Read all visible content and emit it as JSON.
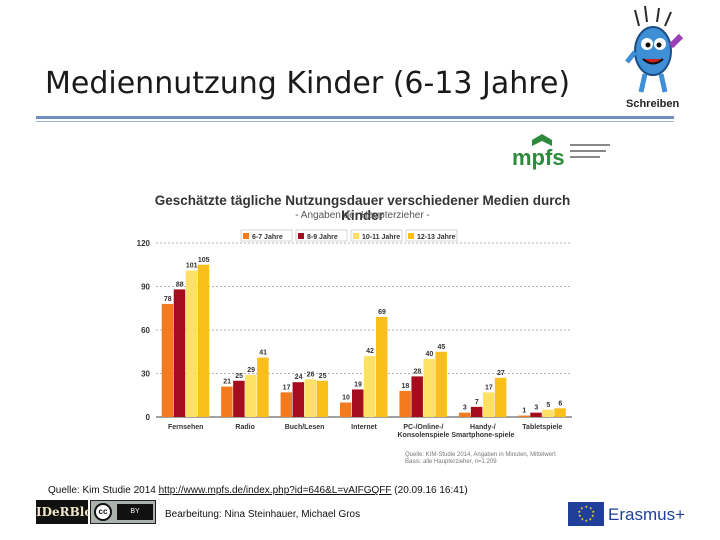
{
  "slide": {
    "title": "Mediennutzung Kinder (6-13 Jahre)",
    "mascot_label": "Schreiben",
    "publisher_logo_text": "mpfs",
    "source_line_prefix": "Quelle: Kim Studie 2014 ",
    "source_link": "http://www.mpfs.de/index.php?id=646&L=vAIFGQFF",
    "source_line_suffix": " (20.09.16 16:41)",
    "credit": "Bearbeitung: Nina Steinhauer, Michael Gros",
    "blog_logo": "IDeRBlog",
    "cc_label": "cc",
    "cc_by": "BY",
    "erasmus_label": "Erasmus+"
  },
  "chart_data": {
    "type": "bar",
    "title": "Geschätzte tägliche Nutzungsdauer verschiedener Medien durch Kinder",
    "subtitle": "- Angaben der Haupterzieher -",
    "categories": [
      "Fernsehen",
      "Radio",
      "Buch/Lesen",
      "Internet",
      "PC-/Online-/ Konsolenspiele",
      "Handy-/ Smartphone-spiele",
      "Tabletspiele"
    ],
    "series": [
      {
        "name": "6-7 Jahre",
        "color": "#f47a20",
        "values": [
          78,
          21,
          17,
          10,
          18,
          3,
          1
        ]
      },
      {
        "name": "8-9 Jahre",
        "color": "#a50d1e",
        "values": [
          88,
          25,
          24,
          19,
          28,
          7,
          3
        ]
      },
      {
        "name": "10-11 Jahre",
        "color": "#ffe066",
        "values": [
          101,
          29,
          26,
          42,
          40,
          17,
          5
        ]
      },
      {
        "name": "12-13 Jahre",
        "color": "#fbbf1c",
        "values": [
          105,
          41,
          25,
          69,
          45,
          27,
          6
        ]
      }
    ],
    "yticks": [
      0,
      30,
      60,
      90,
      120
    ],
    "ylim": [
      0,
      120
    ],
    "legend_position": "top",
    "grid": true,
    "source_note": [
      "Quelle: KIM-Studie 2014, Angaben in Minuten, Mittelwert",
      "Basis: alle Haupterzieher, n=1.209"
    ]
  }
}
